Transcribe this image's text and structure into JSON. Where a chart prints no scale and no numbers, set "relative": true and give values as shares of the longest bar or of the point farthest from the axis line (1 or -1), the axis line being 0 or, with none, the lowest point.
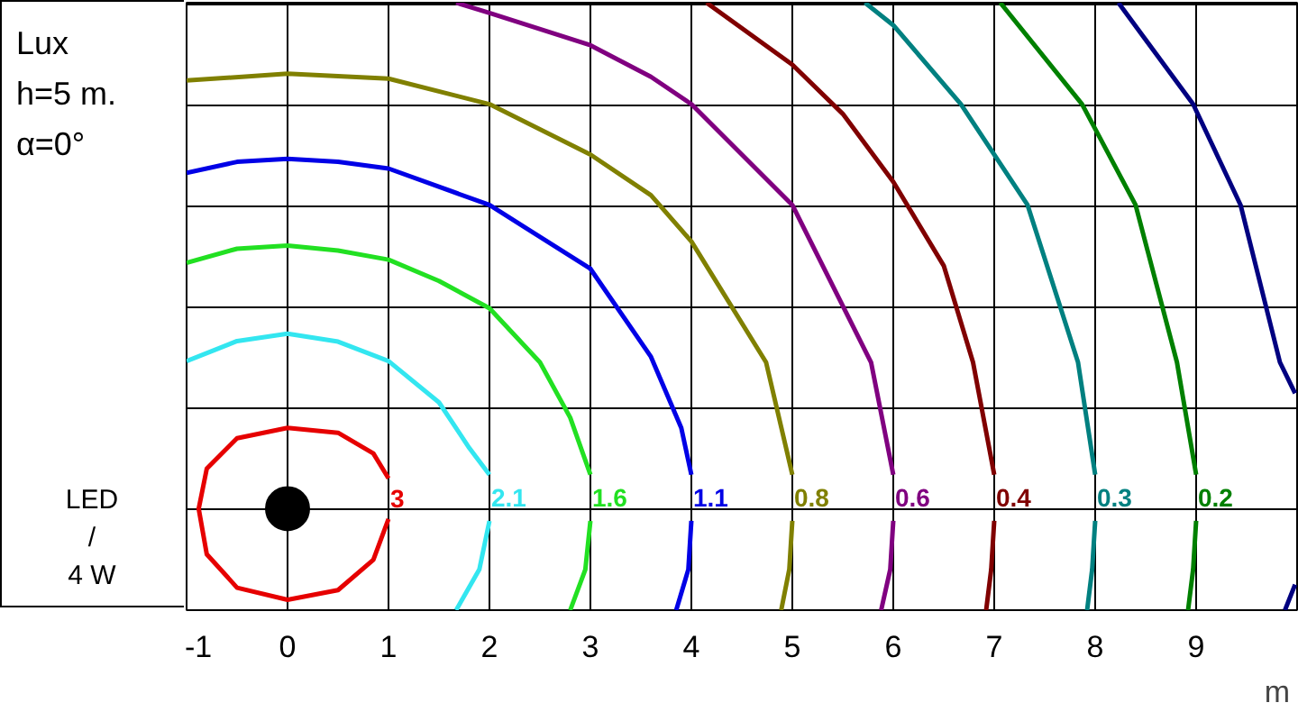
{
  "chart_data": {
    "type": "line",
    "relative": true,
    "xlabel": "m",
    "xlim": [
      -1,
      10
    ],
    "xticks": [
      -1,
      0,
      1,
      2,
      3,
      4,
      5,
      6,
      7,
      8,
      9
    ],
    "grid": true,
    "annotations": [
      "Lux",
      "h=5 m.",
      "α=0°",
      "LED",
      "/",
      "4 W"
    ],
    "series": [
      {
        "name": "3",
        "color": "#e60000",
        "x": [
          1.0,
          0.85,
          0.5,
          0,
          -0.5,
          -0.8,
          -0.88,
          -0.8,
          -0.5,
          0,
          0.5,
          0.85,
          1.0
        ],
        "values": [
          0.217,
          0.258,
          0.292,
          0.3,
          0.283,
          0.233,
          0.167,
          0.092,
          0.037,
          0.017,
          0.033,
          0.083,
          0.15
        ]
      },
      {
        "name": "2.1",
        "color": "#33e6f0",
        "x": [
          -1,
          -0.5,
          0,
          0.5,
          1,
          1.5,
          1.8,
          2.0,
          null,
          2.0,
          1.9,
          1.67
        ],
        "values": [
          0.41,
          0.443,
          0.455,
          0.442,
          0.41,
          0.342,
          0.267,
          0.223,
          null,
          0.147,
          0.067,
          0
        ]
      },
      {
        "name": "1.6",
        "color": "#22e022",
        "x": [
          -1,
          -0.5,
          0,
          0.5,
          1,
          1.5,
          2,
          2.5,
          2.8,
          3.0,
          null,
          3.0,
          2.95,
          2.8
        ],
        "values": [
          0.572,
          0.595,
          0.6,
          0.592,
          0.577,
          0.542,
          0.497,
          0.408,
          0.317,
          0.223,
          null,
          0.147,
          0.067,
          0
        ]
      },
      {
        "name": "1.1",
        "color": "#0000e6",
        "x": [
          -1,
          -0.5,
          0,
          0.5,
          1,
          2,
          3,
          3.6,
          3.9,
          4.0,
          null,
          4.0,
          3.97,
          3.85
        ],
        "values": [
          0.72,
          0.738,
          0.743,
          0.738,
          0.727,
          0.667,
          0.562,
          0.417,
          0.3,
          0.223,
          null,
          0.147,
          0.067,
          0
        ]
      },
      {
        "name": "0.8",
        "color": "#808000",
        "x": [
          -1,
          0,
          1,
          2,
          3,
          3.6,
          4,
          4.74,
          5,
          null,
          5,
          4.97,
          4.89
        ],
        "values": [
          0.872,
          0.883,
          0.875,
          0.833,
          0.75,
          0.683,
          0.607,
          0.408,
          0.223,
          null,
          0.147,
          0.067,
          0
        ]
      },
      {
        "name": "0.6",
        "color": "#800080",
        "x": [
          1.67,
          2,
          3,
          3.6,
          4,
          5,
          5.78,
          6,
          null,
          6,
          5.97,
          5.88
        ],
        "values": [
          1,
          0.983,
          0.93,
          0.878,
          0.833,
          0.667,
          0.408,
          0.223,
          null,
          0.147,
          0.067,
          0
        ]
      },
      {
        "name": "0.4",
        "color": "#800000",
        "x": [
          4.15,
          5,
          5.5,
          6,
          6.5,
          6.79,
          7,
          null,
          7,
          6.97,
          6.92
        ],
        "values": [
          1,
          0.898,
          0.817,
          0.705,
          0.567,
          0.408,
          0.223,
          null,
          0.147,
          0.067,
          0
        ]
      },
      {
        "name": "0.3",
        "color": "#008080",
        "x": [
          5.72,
          6,
          6.67,
          7.33,
          7.83,
          8,
          null,
          8,
          7.97,
          7.92
        ],
        "values": [
          1,
          0.963,
          0.833,
          0.667,
          0.408,
          0.223,
          null,
          0.147,
          0.067,
          0
        ]
      },
      {
        "name": "0.2",
        "color": "#008000",
        "x": [
          7.06,
          7.87,
          8.4,
          8.81,
          9.0,
          null,
          9.0,
          8.97,
          8.92
        ],
        "values": [
          1,
          0.833,
          0.667,
          0.408,
          0.223,
          null,
          0.147,
          0.067,
          0
        ]
      },
      {
        "type": "scatter",
        "marker": "circle",
        "color": "#000000",
        "x": [
          0
        ],
        "values": [
          0.167
        ]
      },
      {
        "color": "#000080",
        "x": [
          8.23,
          8.97,
          9.44,
          9.83,
          9.98,
          null,
          9.98,
          9.88
        ],
        "values": [
          1,
          0.833,
          0.667,
          0.408,
          0.357,
          null,
          0.042,
          0
        ]
      }
    ]
  }
}
